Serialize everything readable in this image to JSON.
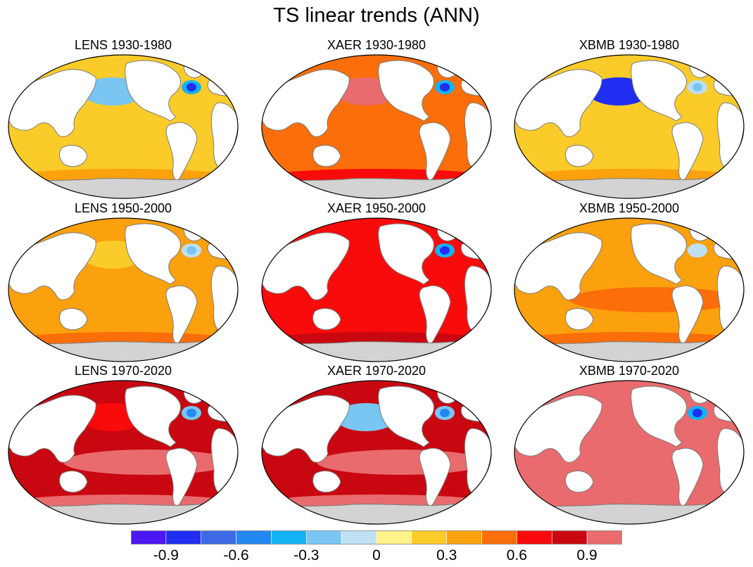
{
  "chart_data": {
    "type": "heatmap",
    "title": "TS linear trends (ANN)",
    "variable": "TS",
    "projection": "global map",
    "panels": [
      {
        "title": "LENS 1930-1980",
        "mean_trend": 0.15,
        "north_atlantic_min": -0.8,
        "north_pacific": -0.3
      },
      {
        "title": "XAER 1930-1980",
        "mean_trend": 0.45,
        "north_atlantic_min": -0.9,
        "north_pacific": 0.9
      },
      {
        "title": "XBMB 1930-1980",
        "mean_trend": 0.15,
        "north_atlantic_min": -0.3,
        "north_pacific": -0.8
      },
      {
        "title": "LENS 1950-2000",
        "mean_trend": 0.3,
        "north_atlantic_min": -0.3,
        "north_pacific": 0.15
      },
      {
        "title": "XAER 1950-2000",
        "mean_trend": 0.6,
        "north_atlantic_min": -0.8,
        "north_pacific": 0.6
      },
      {
        "title": "XBMB 1950-2000",
        "mean_trend": 0.35,
        "north_atlantic_min": -0.1,
        "north_pacific": 0.3
      },
      {
        "title": "LENS 1970-2020",
        "mean_trend": 0.8,
        "north_atlantic_min": -0.5,
        "north_pacific": 0.7
      },
      {
        "title": "XAER 1970-2020",
        "mean_trend": 0.8,
        "north_atlantic_min": -0.5,
        "north_pacific": -0.2
      },
      {
        "title": "XBMB 1970-2020",
        "mean_trend": 0.9,
        "north_atlantic_min": -0.8,
        "north_pacific": 1.0
      }
    ],
    "colorbar": {
      "levels": [
        -1.05,
        -0.9,
        -0.75,
        -0.6,
        -0.45,
        -0.3,
        -0.15,
        0,
        0.15,
        0.3,
        0.45,
        0.6,
        0.75,
        0.9,
        1.05
      ],
      "colors": [
        "#4a16f2",
        "#1f2ef0",
        "#3c6ae6",
        "#2388f0",
        "#13b3f5",
        "#79c6f2",
        "#bee0f3",
        "#fff28a",
        "#fbcb2a",
        "#fba10e",
        "#fb6e09",
        "#fa0b0b",
        "#c80711",
        "#e96b6d"
      ],
      "tick_labels": [
        "-0.9",
        "-0.6",
        "-0.3",
        "0",
        "0.3",
        "0.6",
        "0.9"
      ],
      "tick_values": [
        -0.9,
        -0.6,
        -0.3,
        0,
        0.3,
        0.6,
        0.9
      ]
    },
    "land_color": "#ffffff",
    "antarctica_color": "#d3d3d3",
    "coast_color": "#7a7a7a"
  }
}
